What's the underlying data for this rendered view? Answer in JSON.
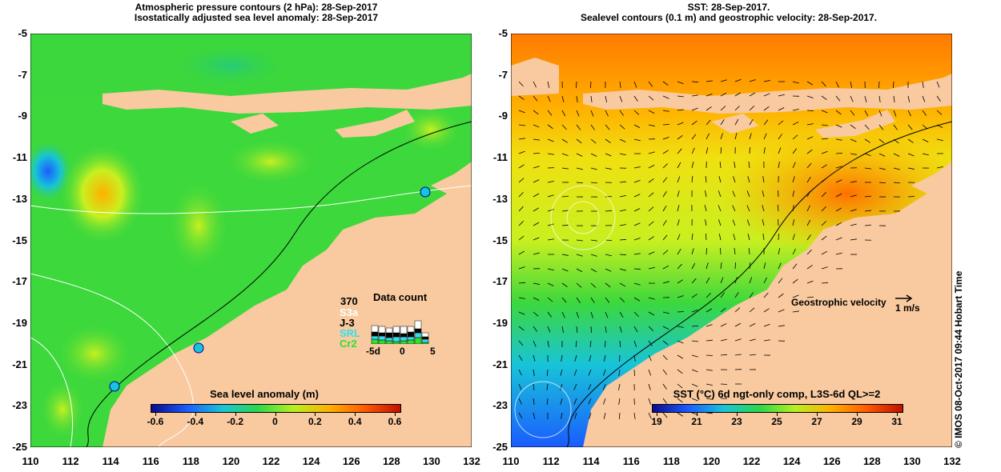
{
  "left_panel": {
    "title_line1": "Atmospheric pressure contours (2 hPa): 28-Sep-2017",
    "title_line2": "Isostatically adjusted sea level anomaly: 28-Sep-2017",
    "colorbar_title": "Sea level anomaly (m)",
    "colorbar_ticks": [
      "-0.6",
      "-0.4",
      "-0.2",
      "0",
      "0.2",
      "0.4",
      "0.6"
    ],
    "colorbar_colors": [
      "#0a0a8c",
      "#1a5cff",
      "#18c4d8",
      "#2cd84a",
      "#b8f020",
      "#ffb000",
      "#ff5a00",
      "#c01000"
    ],
    "data_count": {
      "title": "Data count",
      "max": "370",
      "legend": [
        {
          "label": "S3a",
          "color": "#ffffff"
        },
        {
          "label": "J-3",
          "color": "#000000"
        },
        {
          "label": "SRL",
          "color": "#30e0f0"
        },
        {
          "label": "Cr2",
          "color": "#30e030"
        }
      ],
      "x_ticks": [
        "-5d",
        "0",
        "5"
      ]
    }
  },
  "right_panel": {
    "title_line1": "SST: 28-Sep-2017.",
    "title_line2": "Sealevel contours (0.1 m) and geostrophic velocity: 28-Sep-2017.",
    "colorbar_title": "SST (°C) 6d ngt-only comp, L3S-6d QL>=2",
    "colorbar_ticks": [
      "19",
      "21",
      "23",
      "25",
      "27",
      "29",
      "31"
    ],
    "colorbar_colors": [
      "#0a0a8c",
      "#1a5cff",
      "#18c4d8",
      "#2cd84a",
      "#b8f020",
      "#ffb000",
      "#ff5a00",
      "#c01000"
    ],
    "velocity_label": "Geostrophic velocity",
    "velocity_scale": "1 m/s"
  },
  "axes": {
    "lat_ticks": [
      "-5",
      "-7",
      "-9",
      "-11",
      "-13",
      "-15",
      "-17",
      "-19",
      "-21",
      "-23",
      "-25"
    ],
    "lon_ticks": [
      "110",
      "112",
      "114",
      "116",
      "118",
      "120",
      "122",
      "124",
      "126",
      "128",
      "130",
      "132"
    ]
  },
  "credit": "©  IMOS 08-Oct-2017 09:44 Hobart Time",
  "colors": {
    "land": "#f9caa0",
    "left_ocean": "#3cd83c",
    "right_ocean": "#f0c010"
  }
}
